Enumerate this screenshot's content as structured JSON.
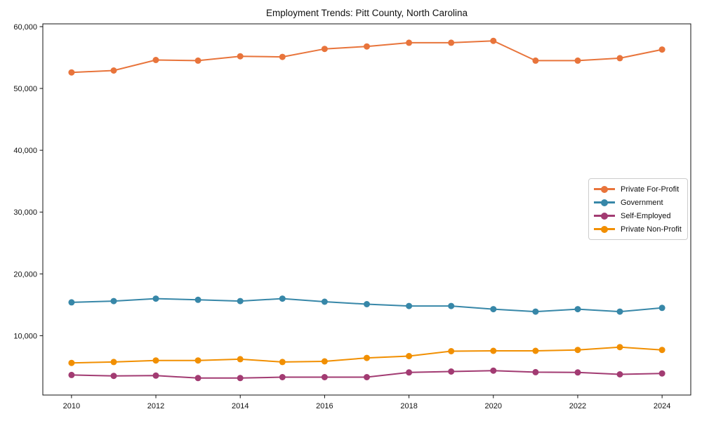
{
  "chart_data": {
    "type": "line",
    "title": "Employment Trends: Pitt County, North Carolina",
    "xlabel": "",
    "ylabel": "",
    "x": [
      2010,
      2011,
      2012,
      2013,
      2014,
      2015,
      2016,
      2017,
      2018,
      2019,
      2020,
      2021,
      2022,
      2023,
      2024
    ],
    "series": [
      {
        "name": "Private For-Profit",
        "color": "#E8743B",
        "values": [
          52600,
          52900,
          54600,
          54500,
          55200,
          55100,
          56400,
          56800,
          57400,
          57400,
          57700,
          54500,
          54500,
          54900,
          56300
        ]
      },
      {
        "name": "Government",
        "color": "#3787A8",
        "values": [
          15400,
          15600,
          16000,
          15800,
          15600,
          16000,
          15500,
          15100,
          14800,
          14800,
          14300,
          13900,
          14300,
          13900,
          14500
        ]
      },
      {
        "name": "Self-Employed",
        "color": "#A23B72",
        "values": [
          3650,
          3500,
          3550,
          3150,
          3150,
          3300,
          3300,
          3300,
          4050,
          4200,
          4350,
          4100,
          4050,
          3750,
          3900
        ]
      },
      {
        "name": "Private Non-Profit",
        "color": "#F18F01",
        "values": [
          5600,
          5750,
          6000,
          6000,
          6200,
          5750,
          5850,
          6400,
          6700,
          7500,
          7550,
          7550,
          7700,
          8150,
          7700
        ]
      }
    ],
    "xticks": [
      2010,
      2012,
      2014,
      2016,
      2018,
      2020,
      2022,
      2024
    ],
    "xtick_labels": [
      "2010",
      "2012",
      "2014",
      "2016",
      "2018",
      "2020",
      "2022",
      "2024"
    ],
    "yticks": [
      10000,
      20000,
      30000,
      40000,
      50000,
      60000
    ],
    "ytick_labels": [
      "10,000",
      "20,000",
      "30,000",
      "40,000",
      "50,000",
      "60,000"
    ],
    "xlim": [
      2009.32,
      2024.68
    ],
    "ylim": [
      400,
      60450
    ],
    "grid": false,
    "legend_position": "center right",
    "marker": "circle",
    "frame_color": "#111111"
  }
}
